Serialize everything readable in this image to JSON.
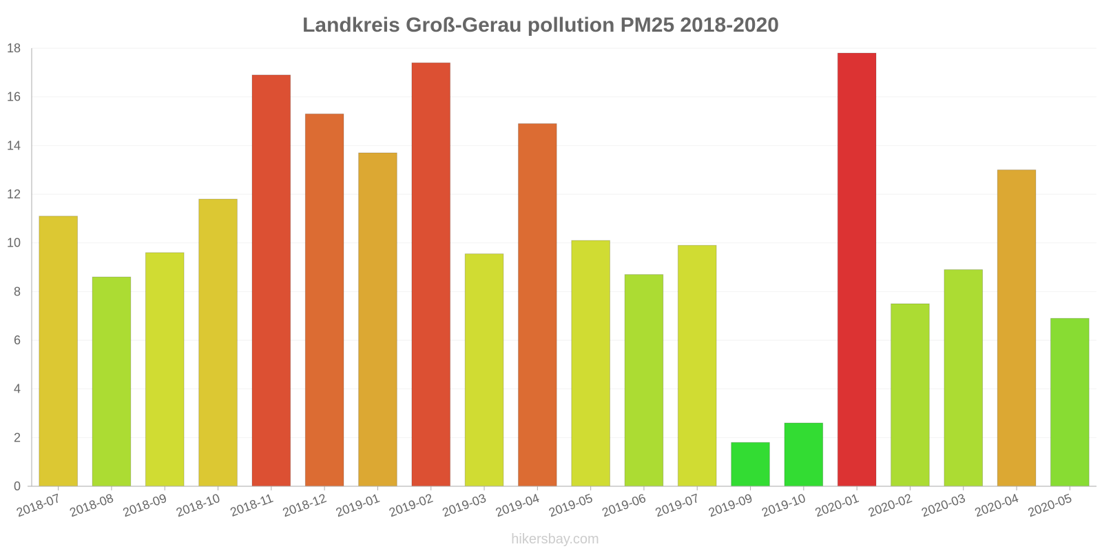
{
  "chart_data": {
    "type": "bar",
    "title": "Landkreis Groß-Gerau pollution PM25 2018-2020",
    "xlabel": "",
    "ylabel": "",
    "ylim": [
      0,
      18
    ],
    "yticks": [
      0,
      2,
      4,
      6,
      8,
      10,
      12,
      14,
      16,
      18
    ],
    "grid": true,
    "categories": [
      "2018-07",
      "2018-08",
      "2018-09",
      "2018-10",
      "2018-11",
      "2018-12",
      "2019-01",
      "2019-02",
      "2019-03",
      "2019-04",
      "2019-05",
      "2019-06",
      "2019-07",
      "2019-09",
      "2019-10",
      "2020-01",
      "2020-02",
      "2020-03",
      "2020-04",
      "2020-05"
    ],
    "values": [
      11.1,
      8.6,
      9.6,
      11.8,
      16.9,
      15.3,
      13.7,
      17.4,
      9.55,
      14.9,
      10.1,
      8.7,
      9.9,
      1.8,
      2.6,
      17.8,
      7.5,
      8.9,
      13.0,
      6.9
    ],
    "colors": [
      "#dcc833",
      "#acdc33",
      "#d0dc33",
      "#dcc833",
      "#dc5033",
      "#dc6c33",
      "#dca833",
      "#dc5033",
      "#d0dc33",
      "#dc6c33",
      "#d0dc33",
      "#acdc33",
      "#d0dc33",
      "#33dc33",
      "#33dc33",
      "#dc3333",
      "#acdc33",
      "#acdc33",
      "#dca833",
      "#88dc33"
    ]
  },
  "watermark": "hikersbay.com"
}
